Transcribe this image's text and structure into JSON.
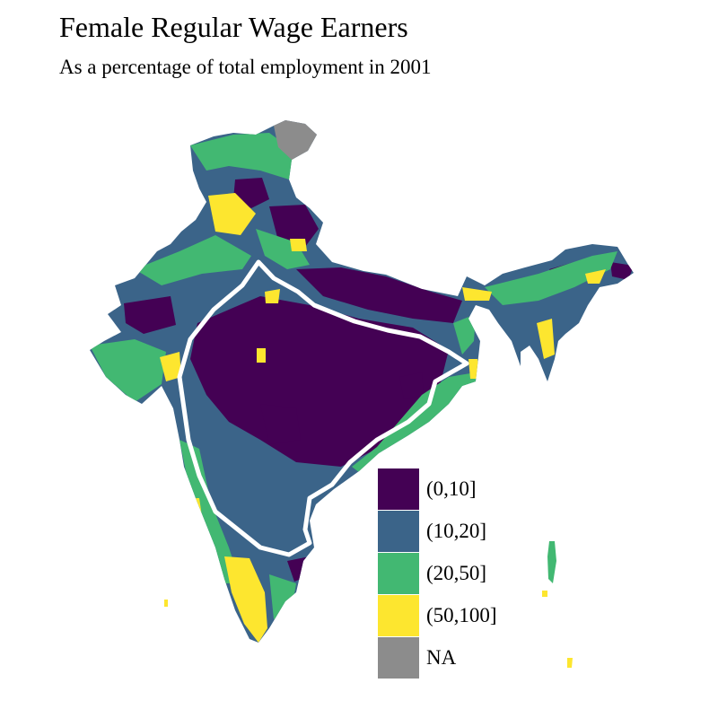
{
  "title": "Female Regular Wage Earners",
  "subtitle": "As a percentage of total employment in 2001",
  "map": {
    "type": "choropleth",
    "region": "India districts",
    "highlight_outline_color": "#ffffff"
  },
  "legend": {
    "items": [
      {
        "label": "(0,10]",
        "color": "#440154"
      },
      {
        "label": "(10,20]",
        "color": "#3b6489"
      },
      {
        "label": "(20,50]",
        "color": "#42b872"
      },
      {
        "label": "(50,100]",
        "color": "#fde62f"
      },
      {
        "label": "NA",
        "color": "#8c8c8c"
      }
    ]
  }
}
